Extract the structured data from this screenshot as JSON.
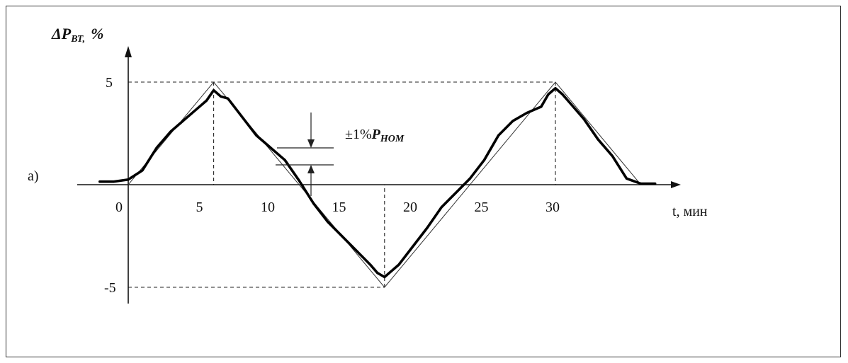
{
  "chart_data": {
    "type": "line",
    "panel_label": "а)",
    "ylabel_main": "ΔP",
    "ylabel_sub": "ВТ,",
    "ylabel_unit": "%",
    "xlabel_t": "t",
    "xlabel_unit": ", мин",
    "x_ticks": [
      "0",
      "5",
      "10",
      "15",
      "20",
      "25",
      "30"
    ],
    "x_tick_values": [
      0,
      5,
      10,
      15,
      20,
      25,
      30
    ],
    "y_ticks": [
      "5",
      "-5"
    ],
    "y_tick_values": [
      5,
      -5
    ],
    "annotation": "±1%",
    "annotation_sub": "P",
    "annotation_sub2": "НОМ",
    "reference": {
      "name": "",
      "x": [
        0,
        6,
        18,
        30,
        36
      ],
      "y": [
        0,
        5,
        -5,
        5,
        0
      ]
    },
    "series": [
      {
        "name": "",
        "x": [
          -2,
          -1,
          0,
          1,
          2,
          3,
          4,
          5,
          5.5,
          6,
          6.5,
          7,
          8,
          9,
          10,
          11,
          12,
          13,
          14,
          15,
          16,
          17,
          17.5,
          18,
          18.5,
          19,
          20,
          21,
          22,
          23,
          24,
          25,
          26,
          27,
          28,
          29,
          29.5,
          30,
          30.5,
          31,
          32,
          33,
          34,
          35,
          36,
          37
        ],
        "y": [
          0.15,
          0.15,
          0.25,
          0.7,
          1.8,
          2.6,
          3.2,
          3.8,
          4.1,
          4.6,
          4.3,
          4.2,
          3.3,
          2.4,
          1.8,
          1.2,
          0.2,
          -0.9,
          -1.8,
          -2.5,
          -3.2,
          -3.9,
          -4.3,
          -4.5,
          -4.2,
          -3.9,
          -3.0,
          -2.1,
          -1.1,
          -0.4,
          0.3,
          1.2,
          2.4,
          3.1,
          3.5,
          3.8,
          4.4,
          4.7,
          4.4,
          4.0,
          3.2,
          2.2,
          1.4,
          0.3,
          0.05,
          0.05
        ]
      }
    ],
    "xlim": [
      -3,
      39
    ],
    "ylim": [
      -5.6,
      6.2
    ]
  }
}
